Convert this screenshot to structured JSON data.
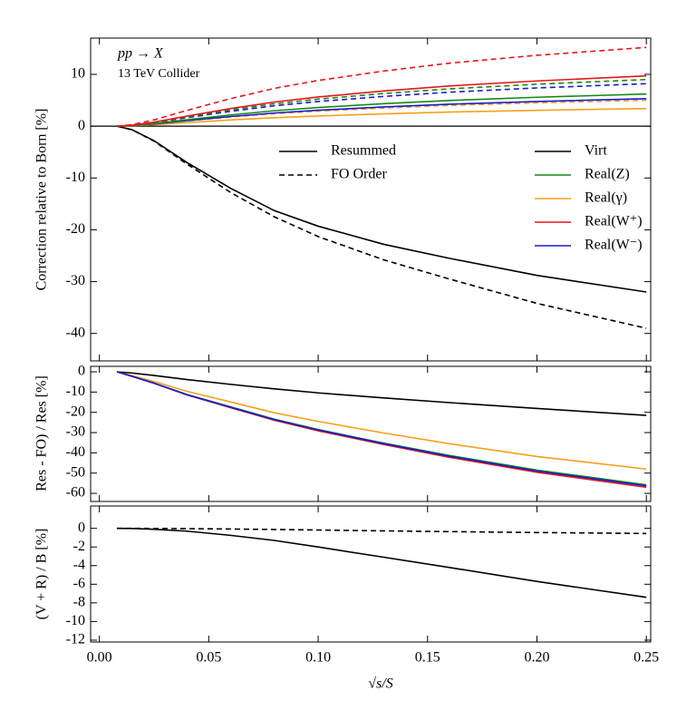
{
  "chart_data": [
    {
      "type": "line",
      "annotations": [
        "pp → X",
        "13 TeV Collider"
      ],
      "ylabel": "Correction relative to Born [%]",
      "x": [
        0.008,
        0.015,
        0.025,
        0.04,
        0.06,
        0.08,
        0.1,
        0.13,
        0.16,
        0.2,
        0.25
      ],
      "xlim": [
        -0.004,
        0.252
      ],
      "ylim": [
        -45.3,
        17
      ],
      "yticks": [
        -40,
        -30,
        -20,
        -10,
        0,
        10
      ],
      "legend": {
        "styles": [
          {
            "label": "Resummed",
            "dashed": false
          },
          {
            "label": "FO Order",
            "dashed": true
          }
        ],
        "entries": [
          {
            "label": "Virt",
            "color": "#000000"
          },
          {
            "label": "Real(Z)",
            "color": "#138a13"
          },
          {
            "label": "Real(γ)",
            "color": "#f5a01a"
          },
          {
            "label": "Real(W⁺)",
            "color": "#e8161b"
          },
          {
            "label": "Real(W⁻)",
            "color": "#1a1ad4"
          }
        ]
      },
      "series": [
        {
          "color": "#000000",
          "dashed": false,
          "values": [
            0,
            -0.7,
            -2.8,
            -7,
            -12,
            -16.3,
            -19.3,
            -22.8,
            -25.5,
            -28.8,
            -32
          ]
        },
        {
          "color": "#000000",
          "dashed": true,
          "values": [
            0,
            -0.7,
            -2.9,
            -7.3,
            -12.8,
            -17.5,
            -21.3,
            -25.8,
            -29.5,
            -34.2,
            -39
          ]
        },
        {
          "color": "#f5a01a",
          "dashed": false,
          "values": [
            0,
            0.07,
            0.27,
            0.68,
            1.19,
            1.63,
            1.97,
            2.38,
            2.72,
            3.06,
            3.4
          ]
        },
        {
          "color": "#f5a01a",
          "dashed": true,
          "values": [
            0,
            0.1,
            0.4,
            1,
            1.75,
            2.4,
            2.9,
            3.5,
            4,
            4.5,
            5
          ]
        },
        {
          "color": "#1a1ad4",
          "dashed": false,
          "values": [
            0,
            0.11,
            0.42,
            1.06,
            1.86,
            2.54,
            3.07,
            3.71,
            4.24,
            4.77,
            5.3
          ]
        },
        {
          "color": "#1a1ad4",
          "dashed": true,
          "values": [
            0,
            0.16,
            0.66,
            1.64,
            2.87,
            3.94,
            4.76,
            5.74,
            6.56,
            7.38,
            8.2
          ]
        },
        {
          "color": "#138a13",
          "dashed": false,
          "values": [
            0,
            0.12,
            0.5,
            1.24,
            2.17,
            2.98,
            3.6,
            4.34,
            4.96,
            5.58,
            6.2
          ]
        },
        {
          "color": "#138a13",
          "dashed": true,
          "values": [
            0,
            0.18,
            0.72,
            1.8,
            3.15,
            4.32,
            5.22,
            6.3,
            7.2,
            8.1,
            9
          ]
        },
        {
          "color": "#e8161b",
          "dashed": false,
          "values": [
            0,
            0.19,
            0.78,
            1.94,
            3.4,
            4.66,
            5.63,
            6.79,
            7.76,
            8.73,
            9.7
          ]
        },
        {
          "color": "#e8161b",
          "dashed": true,
          "values": [
            0,
            0.3,
            1.22,
            3.04,
            5.32,
            7.3,
            8.82,
            10.64,
            12.16,
            13.68,
            15.2
          ]
        }
      ]
    },
    {
      "type": "line",
      "ylabel": "Res - FO) / Res [%]",
      "x": [
        0.008,
        0.015,
        0.025,
        0.04,
        0.06,
        0.08,
        0.1,
        0.13,
        0.16,
        0.2,
        0.25
      ],
      "xlim": [
        -0.004,
        0.252
      ],
      "ylim": [
        -64,
        2.7
      ],
      "yticks": [
        0,
        -10,
        -20,
        -30,
        -40,
        -50,
        -60
      ],
      "series": [
        {
          "color": "#000000",
          "dashed": false,
          "values": [
            0,
            -0.6,
            -1.8,
            -3.8,
            -6.2,
            -8.4,
            -10.4,
            -12.9,
            -15.2,
            -18.1,
            -21.5
          ]
        },
        {
          "color": "#f5a01a",
          "dashed": false,
          "values": [
            0,
            -1.9,
            -4.8,
            -9.6,
            -14.9,
            -20.2,
            -24.5,
            -30.2,
            -35.5,
            -41.8,
            -48
          ]
        },
        {
          "color": "#138a13",
          "dashed": false,
          "values": [
            0,
            -2.2,
            -5.6,
            -11.2,
            -17.3,
            -23.4,
            -28.5,
            -35.2,
            -41.3,
            -48.5,
            -55.8
          ]
        },
        {
          "color": "#e8161b",
          "dashed": false,
          "values": [
            0,
            -2.3,
            -5.7,
            -11.4,
            -17.7,
            -23.9,
            -29.1,
            -35.9,
            -42.2,
            -49.6,
            -57
          ]
        },
        {
          "color": "#1a1ad4",
          "dashed": false,
          "values": [
            0,
            -2.3,
            -5.6,
            -11.3,
            -17.5,
            -23.6,
            -28.7,
            -35.5,
            -41.7,
            -49,
            -56.3
          ]
        }
      ]
    },
    {
      "type": "line",
      "ylabel": "(V + R) / B [%]",
      "xlabel": "√s/S",
      "x": [
        0.008,
        0.015,
        0.025,
        0.04,
        0.06,
        0.08,
        0.1,
        0.13,
        0.16,
        0.2,
        0.25
      ],
      "xlim": [
        -0.004,
        0.252
      ],
      "ylim": [
        -12.2,
        2.4
      ],
      "xticks": [
        {
          "value": 0,
          "label": "0.00"
        },
        {
          "value": 0.05,
          "label": "0.05"
        },
        {
          "value": 0.1,
          "label": "0.10"
        },
        {
          "value": 0.15,
          "label": "0.15"
        },
        {
          "value": 0.2,
          "label": "0.20"
        },
        {
          "value": 0.25,
          "label": "0.25"
        }
      ],
      "yticks": [
        0,
        -2,
        -4,
        -6,
        -8,
        -10,
        -12
      ],
      "series": [
        {
          "color": "#000000",
          "dashed": false,
          "values": [
            0,
            -0.02,
            -0.1,
            -0.3,
            -0.75,
            -1.3,
            -2,
            -3.1,
            -4.2,
            -5.7,
            -7.4
          ]
        },
        {
          "color": "#000000",
          "dashed": true,
          "values": [
            0,
            0,
            -0.01,
            -0.03,
            -0.07,
            -0.12,
            -0.18,
            -0.27,
            -0.35,
            -0.45,
            -0.55
          ]
        }
      ]
    }
  ]
}
